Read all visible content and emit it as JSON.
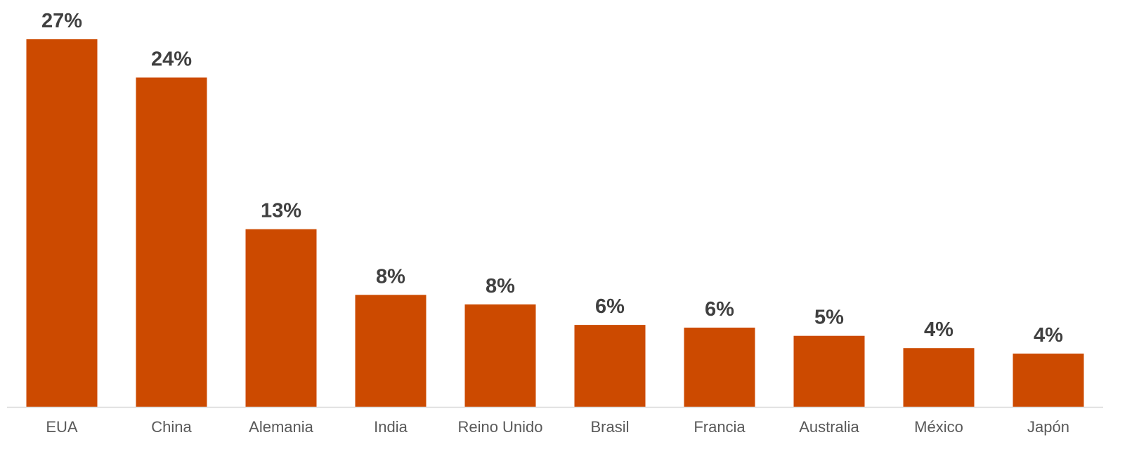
{
  "chart_data": {
    "type": "bar",
    "categories": [
      "EUA",
      "China",
      "Alemania",
      "India",
      "Reino Unido",
      "Brasil",
      "Francia",
      "Australia",
      "México",
      "Japón"
    ],
    "values": [
      26.9,
      24.1,
      13.0,
      8.2,
      7.5,
      6.0,
      5.8,
      5.2,
      4.3,
      3.9
    ],
    "data_labels": [
      "27%",
      "24%",
      "13%",
      "8%",
      "8%",
      "6%",
      "6%",
      "5%",
      "4%",
      "4%"
    ],
    "title": "",
    "xlabel": "",
    "ylabel": "",
    "ylim": [
      0,
      27
    ],
    "grid": false,
    "legend": "none",
    "colors": {
      "bar": "#CC4A00",
      "data_label": "#404040",
      "category_label": "#595959",
      "axis": "#D9D9D9"
    }
  }
}
